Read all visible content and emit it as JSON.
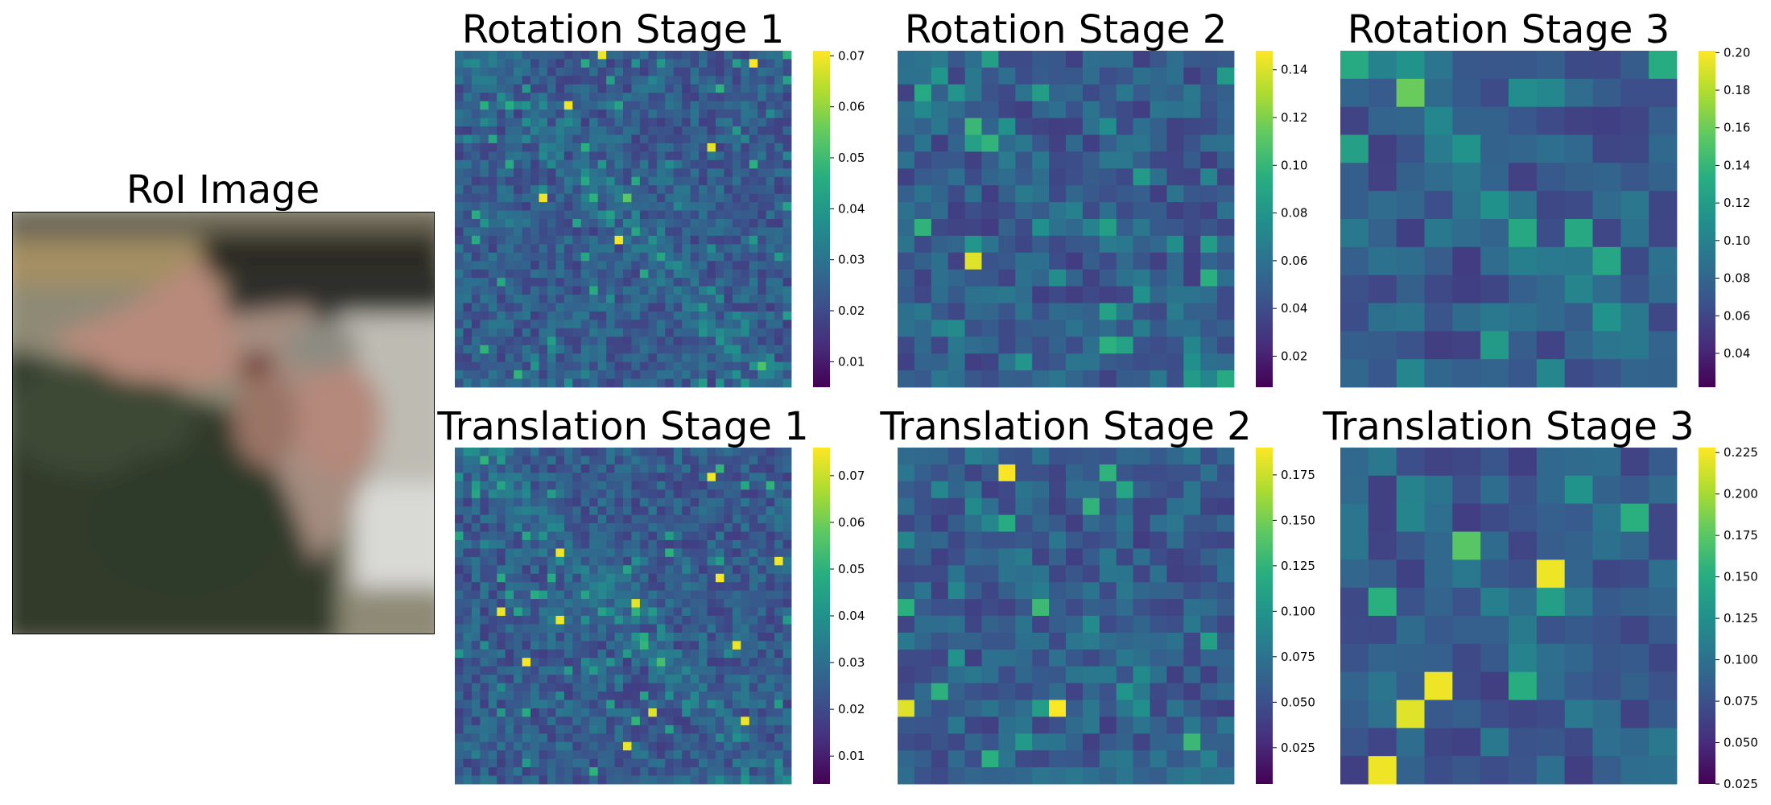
{
  "roi": {
    "title": "RoI Image"
  },
  "chart_data": [
    {
      "type": "heatmap",
      "title": "Rotation Stage 1",
      "grid": [
        40,
        40
      ],
      "colormap": "viridis",
      "vmin": 0.005,
      "vmax": 0.071,
      "colorbar_ticks": [
        "0.01",
        "0.02",
        "0.03",
        "0.04",
        "0.05",
        "0.06",
        "0.07"
      ],
      "colorbar_tick_values": [
        0.01,
        0.02,
        0.03,
        0.04,
        0.05,
        0.06,
        0.07
      ],
      "axes": "off"
    },
    {
      "type": "heatmap",
      "title": "Rotation Stage 2",
      "grid": [
        20,
        20
      ],
      "colormap": "viridis",
      "vmin": 0.007,
      "vmax": 0.148,
      "colorbar_ticks": [
        "0.02",
        "0.04",
        "0.06",
        "0.08",
        "0.10",
        "0.12",
        "0.14"
      ],
      "colorbar_tick_values": [
        0.02,
        0.04,
        0.06,
        0.08,
        0.1,
        0.12,
        0.14
      ],
      "axes": "off"
    },
    {
      "type": "heatmap",
      "title": "Rotation Stage 3",
      "grid": [
        12,
        12
      ],
      "colormap": "viridis",
      "vmin": 0.022,
      "vmax": 0.201,
      "colorbar_ticks": [
        "0.04",
        "0.06",
        "0.08",
        "0.10",
        "0.12",
        "0.14",
        "0.16",
        "0.18",
        "0.20"
      ],
      "colorbar_tick_values": [
        0.04,
        0.06,
        0.08,
        0.1,
        0.12,
        0.14,
        0.16,
        0.18,
        0.2
      ],
      "axes": "off"
    },
    {
      "type": "heatmap",
      "title": "Translation Stage 1",
      "grid": [
        40,
        40
      ],
      "colormap": "viridis",
      "vmin": 0.004,
      "vmax": 0.076,
      "colorbar_ticks": [
        "0.01",
        "0.02",
        "0.03",
        "0.04",
        "0.05",
        "0.06",
        "0.07"
      ],
      "colorbar_tick_values": [
        0.01,
        0.02,
        0.03,
        0.04,
        0.05,
        0.06,
        0.07
      ],
      "axes": "off"
    },
    {
      "type": "heatmap",
      "title": "Translation Stage 2",
      "grid": [
        20,
        20
      ],
      "colormap": "viridis",
      "vmin": 0.005,
      "vmax": 0.19,
      "colorbar_ticks": [
        "0.025",
        "0.050",
        "0.075",
        "0.100",
        "0.125",
        "0.150",
        "0.175"
      ],
      "colorbar_tick_values": [
        0.025,
        0.05,
        0.075,
        0.1,
        0.125,
        0.15,
        0.175
      ],
      "axes": "off"
    },
    {
      "type": "heatmap",
      "title": "Translation Stage 3",
      "grid": [
        12,
        12
      ],
      "colormap": "viridis",
      "vmin": 0.025,
      "vmax": 0.228,
      "colorbar_ticks": [
        "0.025",
        "0.050",
        "0.075",
        "0.100",
        "0.125",
        "0.150",
        "0.175",
        "0.200",
        "0.225"
      ],
      "colorbar_tick_values": [
        0.025,
        0.05,
        0.075,
        0.1,
        0.125,
        0.15,
        0.175,
        0.2,
        0.225
      ],
      "axes": "off"
    }
  ]
}
